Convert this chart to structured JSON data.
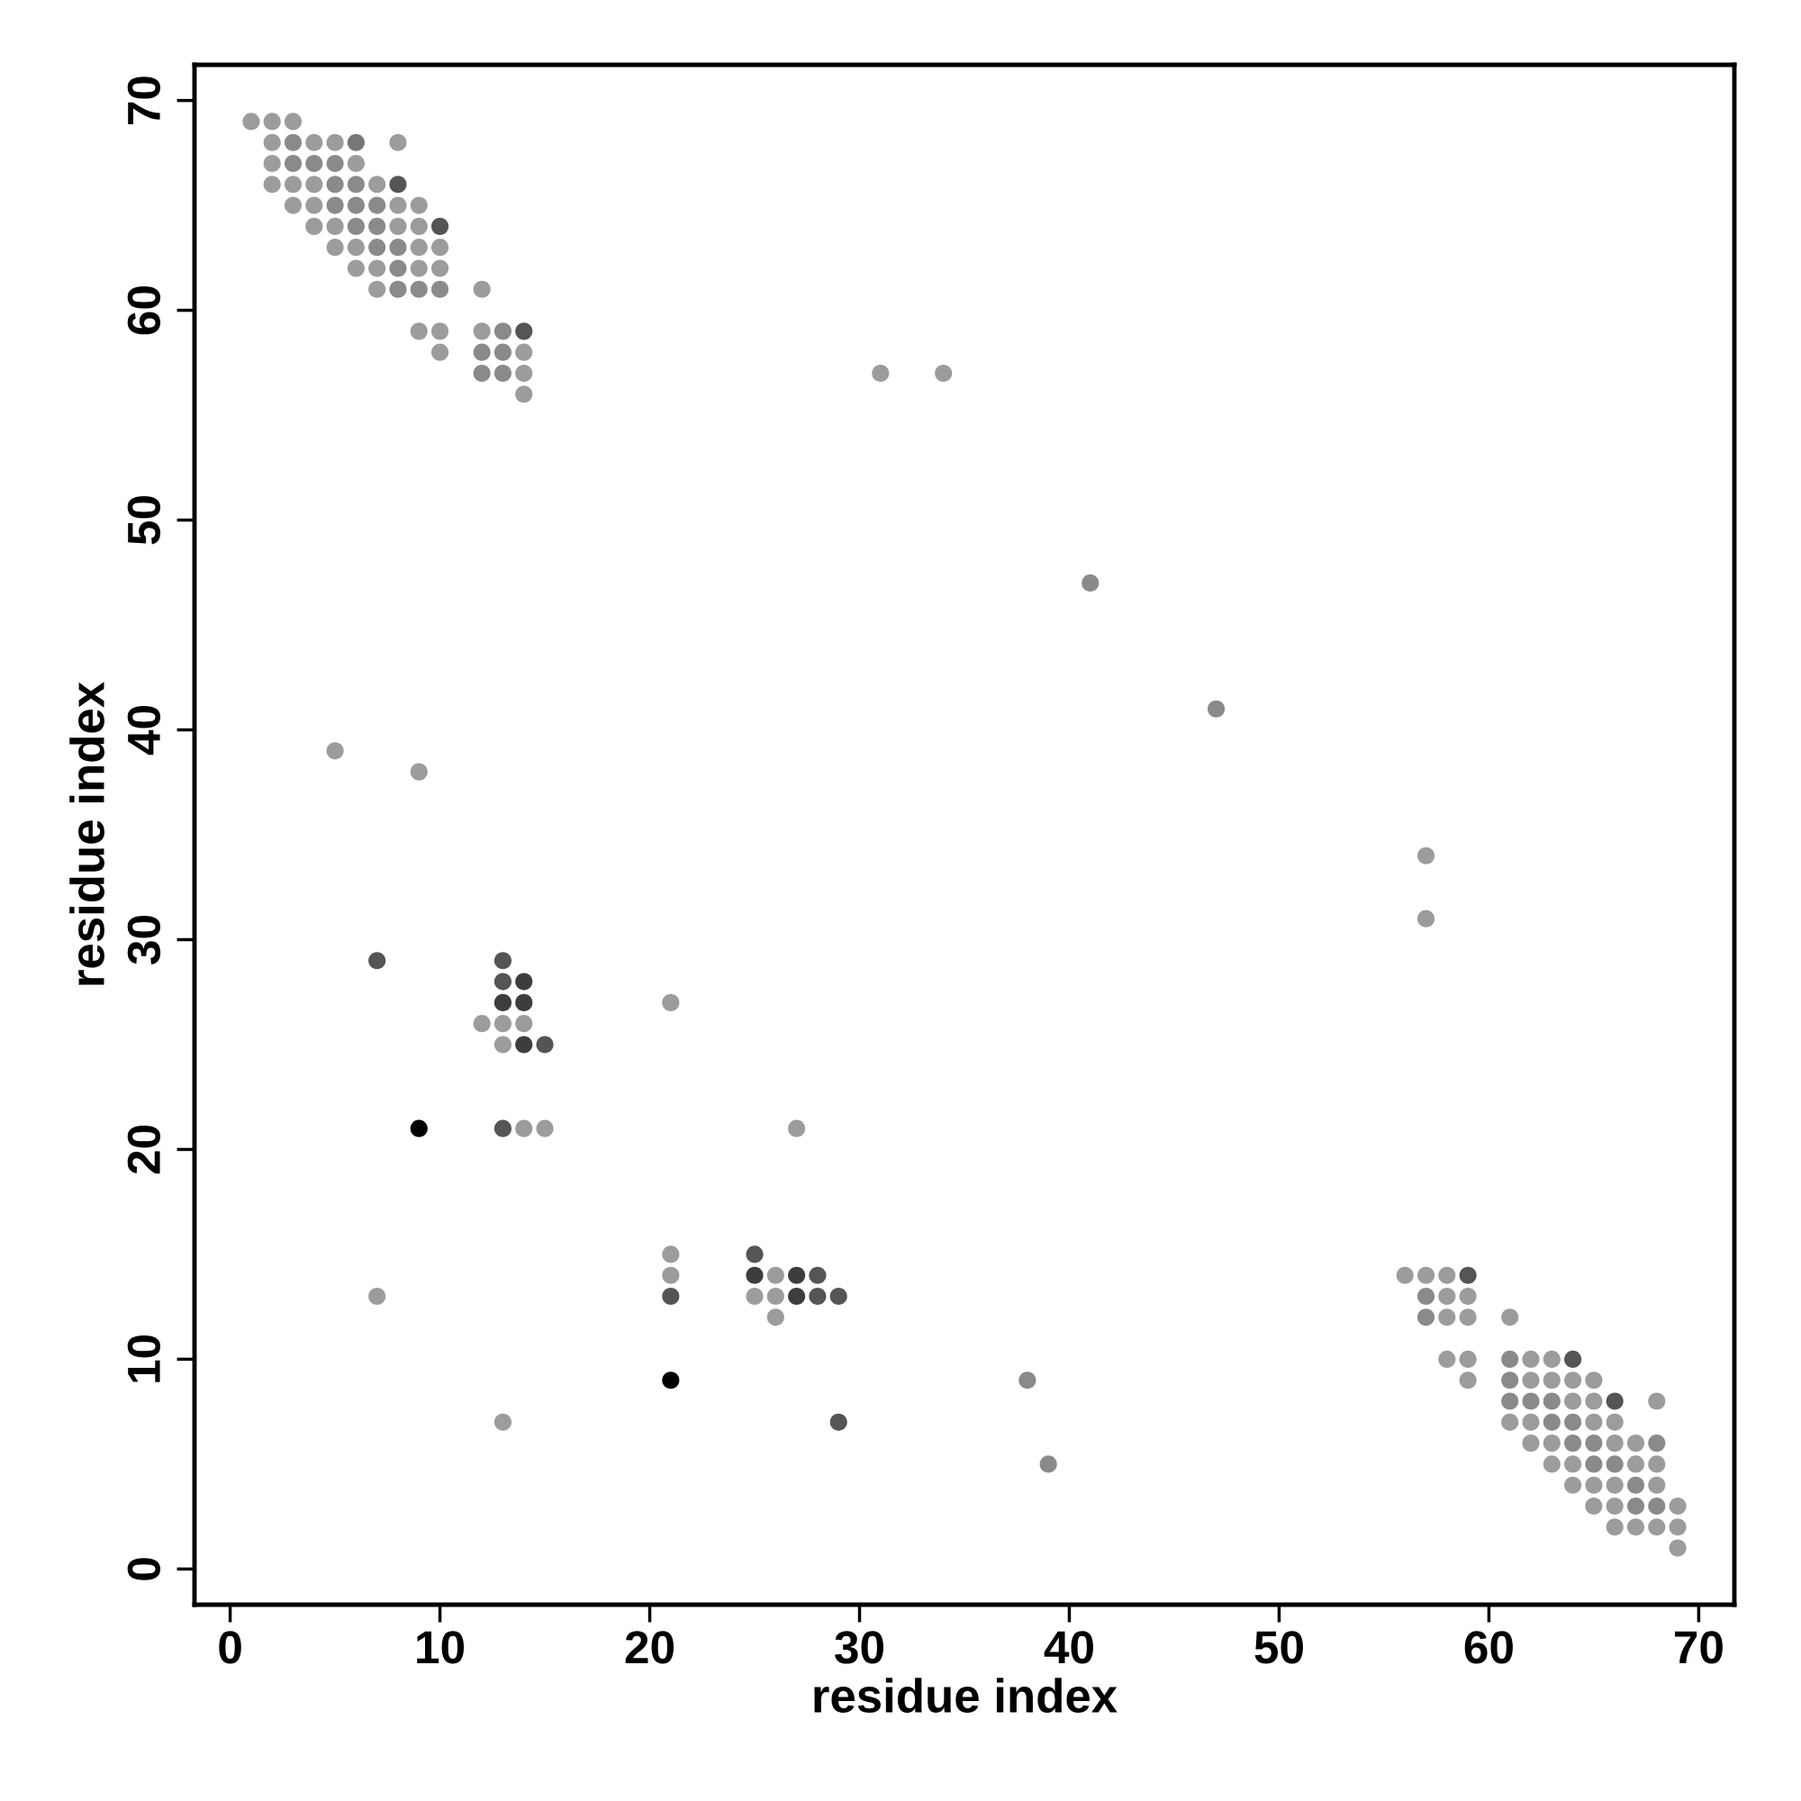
{
  "chart_data": {
    "type": "scatter",
    "xlabel": "residue index",
    "ylabel": "residue index",
    "xlim": [
      -1.7,
      71.7
    ],
    "ylim": [
      -1.7,
      71.7
    ],
    "xticks": [
      0,
      10,
      20,
      30,
      40,
      50,
      60,
      70
    ],
    "yticks": [
      0,
      10,
      20,
      30,
      40,
      50,
      60,
      70
    ],
    "grid": false,
    "marker": "circle",
    "series": [
      {
        "color": "#9c9c9c",
        "x": [
          1,
          2,
          3,
          2,
          4,
          5,
          8,
          2,
          6,
          2,
          3,
          4,
          7,
          3,
          4,
          8,
          9,
          4,
          5,
          8,
          9,
          5,
          6,
          9,
          10,
          6,
          7,
          9,
          10,
          7,
          12,
          9,
          10,
          12,
          10,
          14,
          14,
          14,
          21,
          12,
          13,
          14,
          13,
          14,
          15,
          27,
          21,
          21,
          26,
          25,
          26,
          26,
          13,
          7,
          5,
          9,
          31,
          34,
          57,
          57,
          56,
          57,
          58,
          58,
          59,
          58,
          59,
          61,
          58,
          59,
          62,
          63,
          59,
          62,
          63,
          64,
          65,
          64,
          65,
          68,
          61,
          62,
          65,
          66,
          62,
          63,
          66,
          67,
          63,
          64,
          67,
          68,
          64,
          65,
          66,
          68,
          65,
          66,
          69,
          66,
          67,
          68,
          69,
          69
        ],
        "values": [
          69,
          69,
          69,
          68,
          68,
          68,
          68,
          67,
          67,
          66,
          66,
          66,
          66,
          65,
          65,
          65,
          65,
          64,
          64,
          64,
          64,
          63,
          63,
          63,
          63,
          62,
          62,
          62,
          62,
          61,
          61,
          59,
          59,
          59,
          58,
          58,
          57,
          56,
          27,
          26,
          26,
          26,
          25,
          21,
          21,
          21,
          15,
          14,
          14,
          13,
          13,
          12,
          7,
          13,
          39,
          38,
          57,
          57,
          34,
          31,
          14,
          14,
          14,
          13,
          13,
          12,
          12,
          12,
          10,
          10,
          10,
          10,
          9,
          9,
          9,
          9,
          9,
          8,
          8,
          8,
          7,
          7,
          7,
          7,
          6,
          6,
          6,
          6,
          5,
          5,
          5,
          5,
          4,
          4,
          4,
          4,
          3,
          3,
          3,
          2,
          2,
          2,
          2,
          1
        ]
      },
      {
        "color": "#8a8a8a",
        "x": [
          3,
          3,
          4,
          5,
          5,
          6,
          5,
          6,
          7,
          6,
          7,
          7,
          8,
          8,
          8,
          9,
          10,
          13,
          12,
          13,
          12,
          13,
          41,
          47,
          38,
          39,
          57,
          57,
          61,
          61,
          61,
          62,
          63,
          63,
          64,
          64,
          65,
          68,
          65,
          66,
          67,
          67,
          68
        ],
        "values": [
          68,
          67,
          67,
          67,
          66,
          66,
          65,
          65,
          65,
          64,
          64,
          63,
          63,
          62,
          61,
          61,
          61,
          59,
          58,
          58,
          57,
          57,
          47,
          41,
          9,
          5,
          13,
          12,
          10,
          9,
          8,
          8,
          8,
          7,
          7,
          6,
          6,
          6,
          5,
          5,
          4,
          3,
          3
        ]
      },
      {
        "color": "#777777",
        "x": [
          6
        ],
        "values": [
          68
        ]
      },
      {
        "color": "#555555",
        "x": [
          8,
          10,
          14,
          59,
          64,
          66,
          13,
          7,
          13,
          15,
          13,
          25,
          28,
          21,
          28,
          29,
          29
        ],
        "values": [
          66,
          64,
          59,
          14,
          10,
          8,
          29,
          29,
          28,
          25,
          21,
          15,
          14,
          13,
          13,
          13,
          7
        ]
      },
      {
        "color": "#3d3d3d",
        "x": [
          14,
          13,
          14,
          14,
          25,
          27,
          27
        ],
        "values": [
          28,
          27,
          27,
          25,
          14,
          14,
          13
        ]
      },
      {
        "color": "#000000",
        "x": [
          9,
          21
        ],
        "values": [
          21,
          9
        ]
      }
    ]
  }
}
